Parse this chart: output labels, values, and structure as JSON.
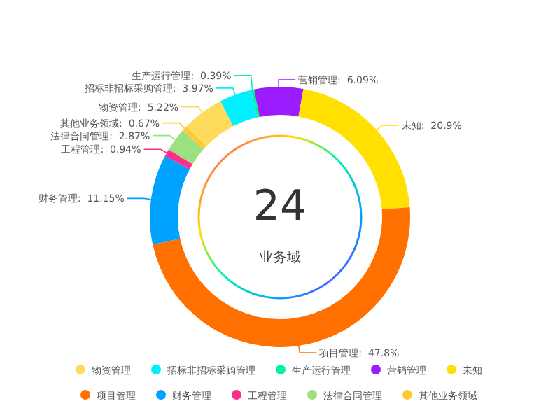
{
  "chart_data": {
    "type": "donut",
    "categories": [
      "物资管理",
      "招标非招标采购管理",
      "生产运行管理",
      "营销管理",
      "未知",
      "项目管理",
      "财务管理",
      "工程管理",
      "法律合同管理",
      "其他业务领域"
    ],
    "values": [
      5.22,
      3.97,
      0.39,
      6.09,
      20.9,
      47.8,
      11.15,
      0.94,
      2.87,
      0.67
    ],
    "colors": [
      "#ffdb5c",
      "#00f0ff",
      "#00f5a0",
      "#9b1cff",
      "#ffe000",
      "#ff7000",
      "#00a2ff",
      "#ff2e8a",
      "#9de07f",
      "#ffc933"
    ],
    "value_labels": [
      "物资管理:  5.22%",
      "招标非招标采购管理:  3.97%",
      "生产运行管理:  0.39%",
      "营销管理:  6.09%",
      "未知:  20.9%",
      "项目管理:  47.8%",
      "财务管理:  11.15%",
      "工程管理:  0.94%",
      "法律合同管理:  2.87%",
      "其他业务领域:  0.67%"
    ],
    "legend": "bottom",
    "annotations": [
      "24",
      "业务域"
    ]
  }
}
